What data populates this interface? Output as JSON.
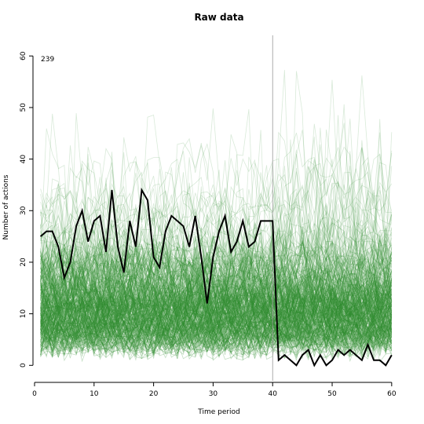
{
  "chart_data": {
    "type": "line",
    "title": "Raw data",
    "xlabel": "Time period",
    "ylabel": "Number of actions",
    "xlim": [
      0,
      62
    ],
    "ylim": [
      -3,
      64
    ],
    "x_ticks": [
      0,
      10,
      20,
      30,
      40,
      50,
      60
    ],
    "y_ticks": [
      0,
      10,
      20,
      30,
      40,
      50,
      60
    ],
    "annotation": "239",
    "vertical_line_x": 40,
    "grid": false,
    "background_series": {
      "count": 300,
      "color": "#2e8b2e",
      "description_of_style": "many thin semi-transparent green lines, most values between 0 and 30, some reaching 40-60"
    },
    "highlight_series": {
      "color": "#000000",
      "x": [
        1,
        2,
        3,
        4,
        5,
        6,
        7,
        8,
        9,
        10,
        11,
        12,
        13,
        14,
        15,
        16,
        17,
        18,
        19,
        20,
        21,
        22,
        23,
        24,
        25,
        26,
        27,
        28,
        29,
        30,
        31,
        32,
        33,
        34,
        35,
        36,
        37,
        38,
        39,
        40,
        41,
        42,
        43,
        44,
        45,
        46,
        47,
        48,
        49,
        50,
        51,
        52,
        53,
        54,
        55,
        56,
        57,
        58,
        59,
        60
      ],
      "values": [
        25,
        26,
        26,
        23,
        17,
        20,
        27,
        30,
        24,
        28,
        29,
        22,
        34,
        23,
        18,
        28,
        23,
        34,
        32,
        21,
        19,
        26,
        29,
        28,
        27,
        23,
        29,
        21,
        12,
        21,
        26,
        29,
        22,
        24,
        28,
        23,
        24,
        28,
        28,
        28,
        1,
        2,
        1,
        0,
        2,
        3,
        0,
        2,
        0,
        1,
        3,
        2,
        3,
        2,
        1,
        4,
        1,
        1,
        0,
        2
      ]
    }
  }
}
